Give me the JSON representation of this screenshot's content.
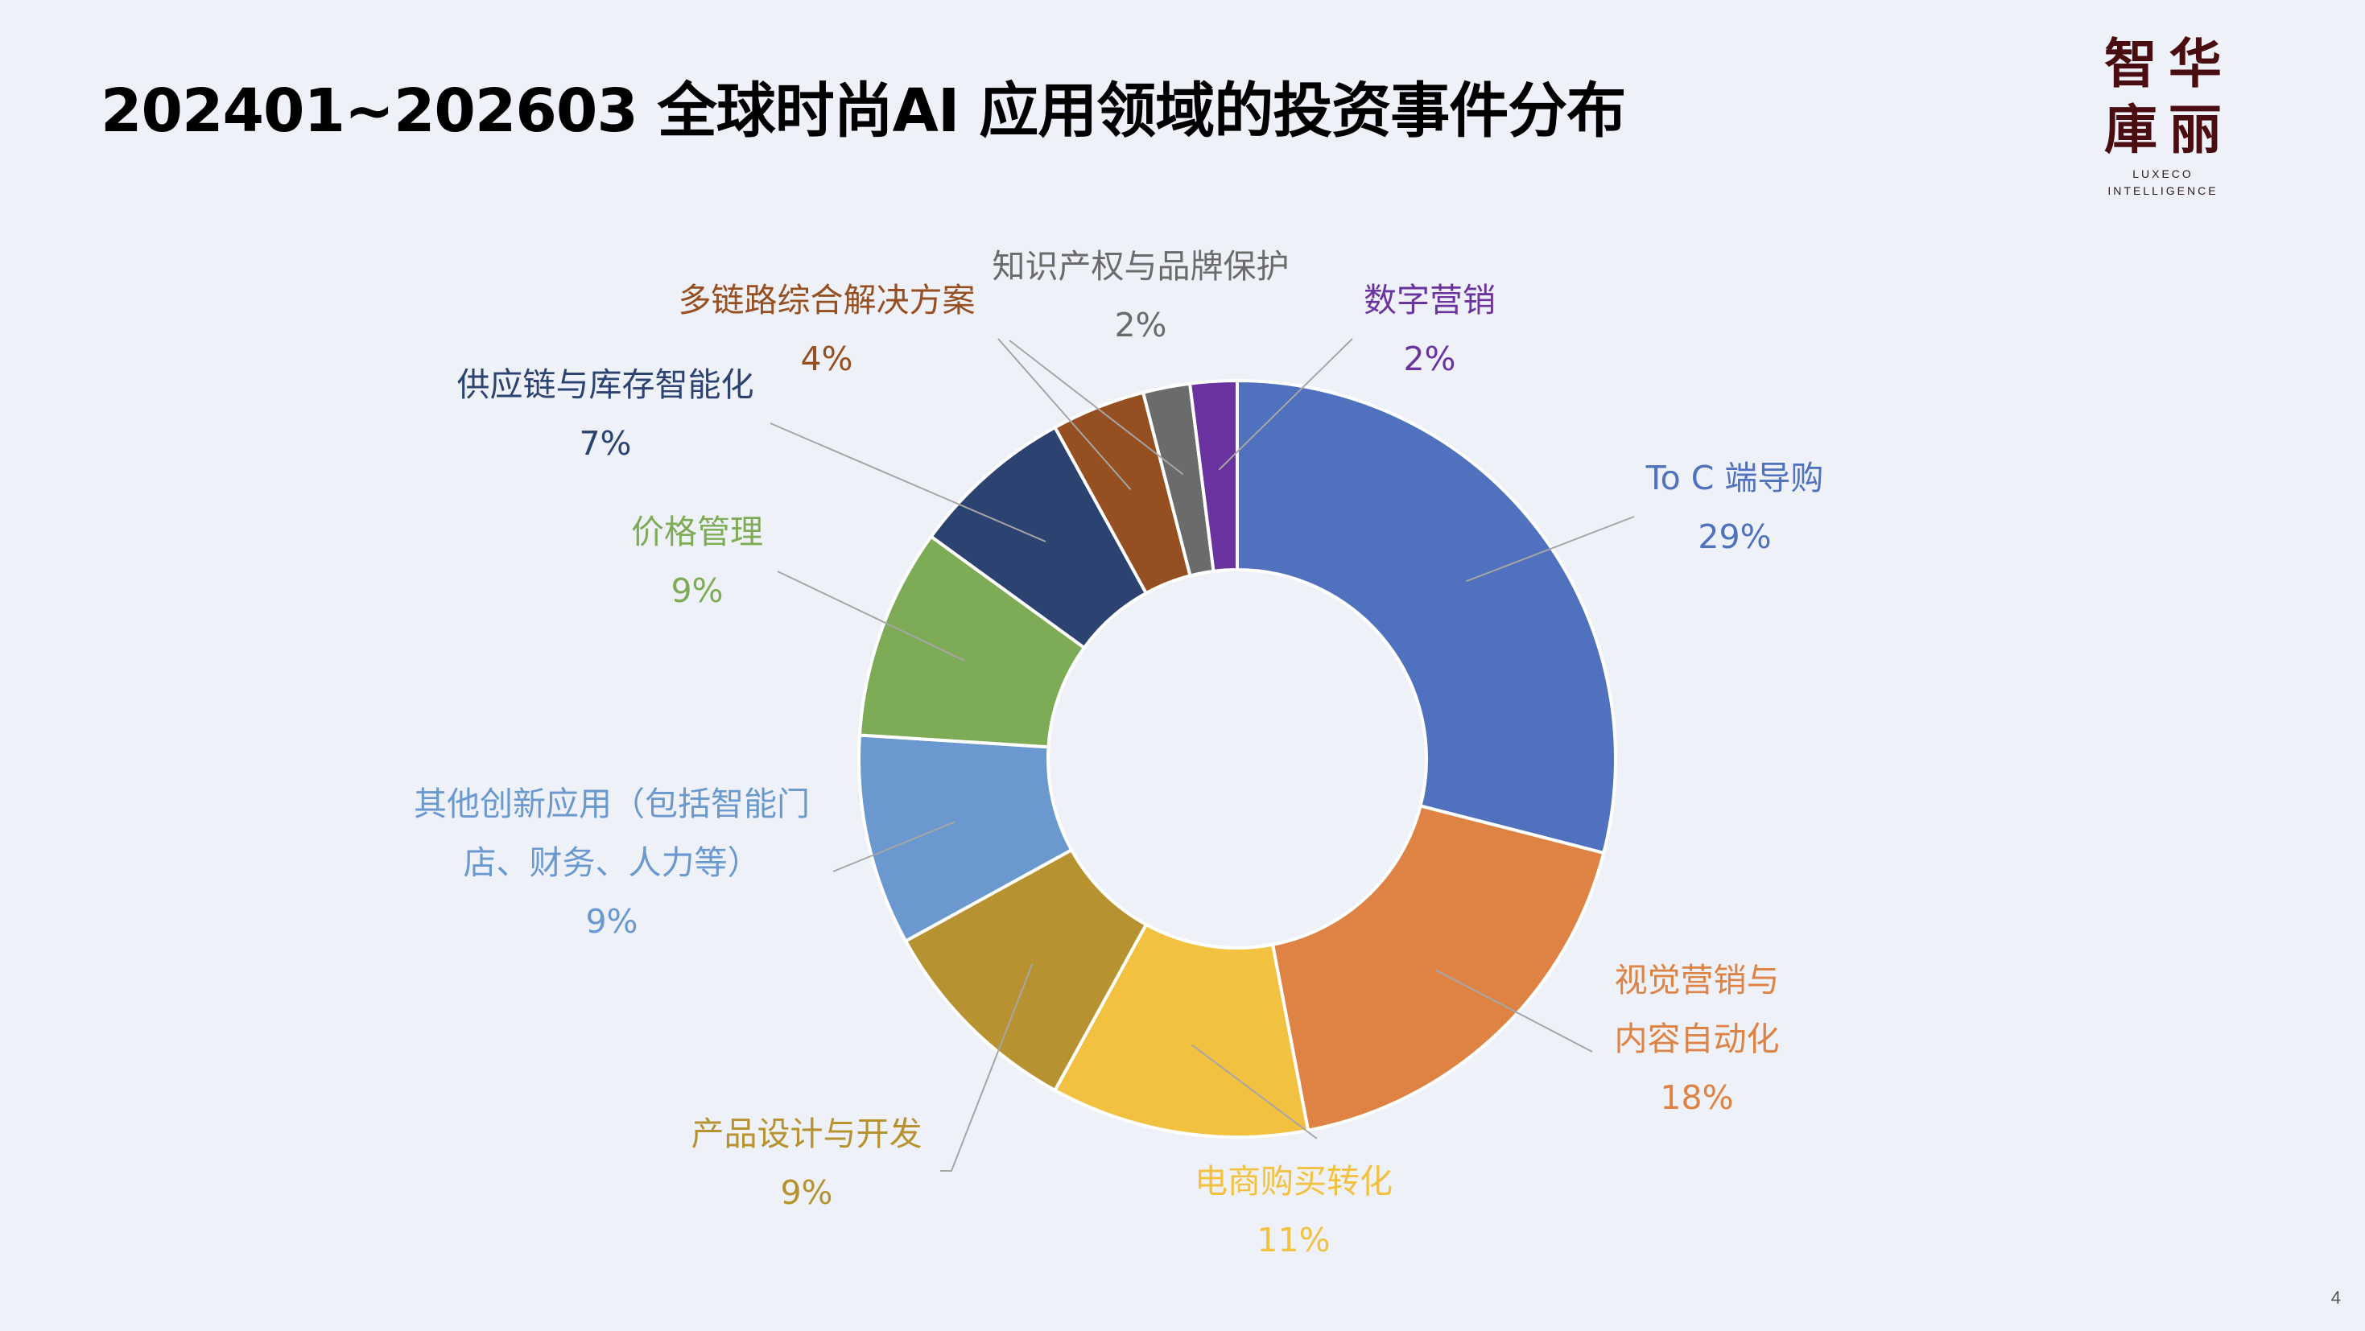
{
  "title": "202401~202603 全球时尚AI 应用领域的投资事件分布",
  "logo": {
    "chars": [
      "智",
      "华",
      "庫",
      "丽"
    ],
    "line1": "LUXECO",
    "line2": "INTELLIGENCE"
  },
  "page_number": "4",
  "chart_data": {
    "type": "pie",
    "style": "donut",
    "title": "",
    "legend": "none",
    "slices": [
      {
        "label": "To C 端导购",
        "value": 29,
        "pct": "29%",
        "color": "#4F71BE"
      },
      {
        "label": "视觉营销与内容自动化",
        "label_lines": [
          "视觉营销与",
          "内容自动化"
        ],
        "value": 18,
        "pct": "18%",
        "color": "#DE8344"
      },
      {
        "label": "电商购买转化",
        "value": 11,
        "pct": "11%",
        "color": "#F3C140"
      },
      {
        "label": "产品设计与开发",
        "value": 9,
        "pct": "9%",
        "color": "#B79230"
      },
      {
        "label": "其他创新应用（包括智能门店、财务、人力等）",
        "label_lines": [
          "其他创新应用（包括智能门",
          "店、财务、人力等）"
        ],
        "value": 9,
        "pct": "9%",
        "color": "#6A98CF"
      },
      {
        "label": "价格管理",
        "value": 9,
        "pct": "9%",
        "color": "#7EAB55"
      },
      {
        "label": "供应链与库存智能化",
        "value": 7,
        "pct": "7%",
        "color": "#2C4271"
      },
      {
        "label": "多链路综合解决方案",
        "value": 4,
        "pct": "4%",
        "color": "#954F21"
      },
      {
        "label": "知识产权与品牌保护",
        "value": 2,
        "pct": "2%",
        "color": "#6B6B6B"
      },
      {
        "label": "数字营销",
        "value": 2,
        "pct": "2%",
        "color": "#6B33A0"
      }
    ]
  }
}
